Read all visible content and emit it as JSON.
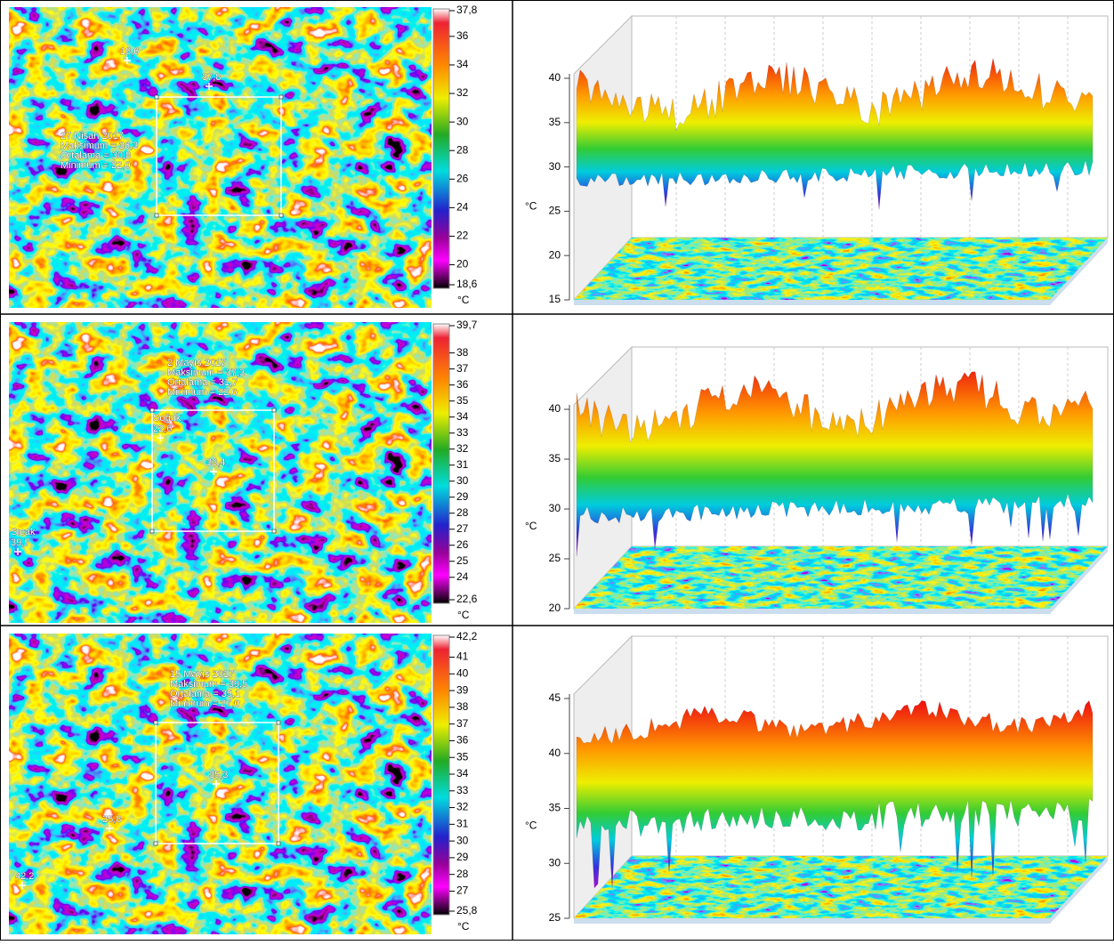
{
  "panels": [
    {
      "thermal": {
        "annotation": [
          "27 Nisan 2017",
          "Maksimum = 36,3",
          "Ortalama = 30,8",
          "Minimum = 22,0"
        ],
        "markers": [
          {
            "label": "18,6"
          },
          {
            "label": "37,8"
          }
        ],
        "colorbar_ticks": [
          "37,8",
          "36",
          "34",
          "32",
          "30",
          "28",
          "26",
          "24",
          "22",
          "20",
          "18,6"
        ],
        "unit": "°C"
      },
      "surface": {
        "yticks": [
          "40",
          "35",
          "30",
          "25",
          "20",
          "15"
        ],
        "ylabel": "°C"
      }
    },
    {
      "thermal": {
        "annotation": [
          "2 Mayıs 2017",
          "Maksimum = 37,3",
          "Ortalama = 31,7",
          "Minimum = 22,6"
        ],
        "markers": [
          {
            "name": "Soğuk",
            "label": "22,6"
          },
          {
            "label": "33,4"
          },
          {
            "name": "Sıcak",
            "label": "39,7"
          }
        ],
        "colorbar_ticks": [
          "39,7",
          "38",
          "37",
          "36",
          "35",
          "34",
          "33",
          "32",
          "31",
          "30",
          "29",
          "28",
          "27",
          "26",
          "25",
          "24",
          "22,6"
        ],
        "unit": "°C"
      },
      "surface": {
        "yticks": [
          "40",
          "35",
          "30",
          "25",
          "20"
        ],
        "ylabel": "°C"
      }
    },
    {
      "thermal": {
        "annotation": [
          "15 Mayıs 2017",
          "Maksimum = 39,5",
          "Ortalama = 35,1",
          "Minimum = 27,0"
        ],
        "markers": [
          {
            "label": "35,3"
          },
          {
            "label": "25,8"
          },
          {
            "label": "42,2"
          }
        ],
        "colorbar_ticks": [
          "42,2",
          "41",
          "40",
          "39",
          "38",
          "37",
          "36",
          "35",
          "34",
          "33",
          "32",
          "31",
          "30",
          "29",
          "28",
          "27",
          "25,8"
        ],
        "unit": "°C"
      },
      "surface": {
        "yticks": [
          "45",
          "40",
          "35",
          "30",
          "25"
        ],
        "ylabel": "°C"
      }
    }
  ]
}
